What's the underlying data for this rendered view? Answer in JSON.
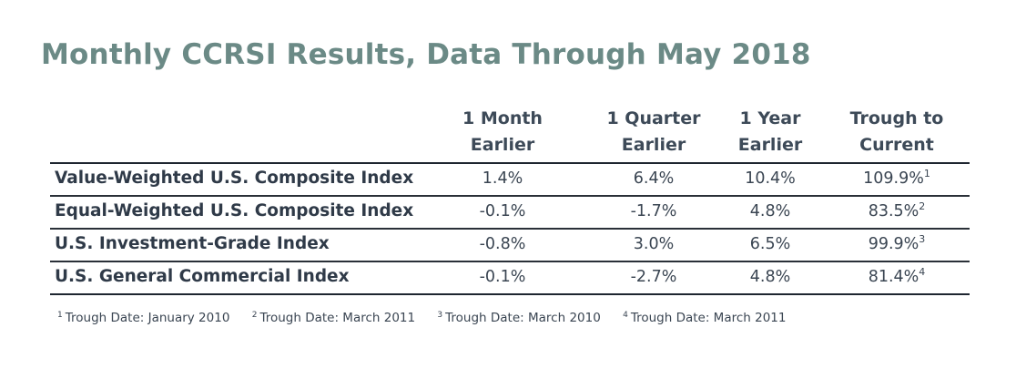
{
  "title": "Monthly CCRSI Results, Data Through May 2018",
  "columns": [
    {
      "line1": "1 Month",
      "line2": "Earlier"
    },
    {
      "line1": "1 Quarter",
      "line2": "Earlier"
    },
    {
      "line1": "1 Year",
      "line2": "Earlier"
    },
    {
      "line1": "Trough to",
      "line2": "Current"
    }
  ],
  "rows": [
    {
      "label": "Value-Weighted U.S. Composite Index",
      "m1": "1.4%",
      "q1": "6.4%",
      "y1": "10.4%",
      "trough": "109.9%",
      "note": "1"
    },
    {
      "label": "Equal-Weighted U.S. Composite Index",
      "m1": "-0.1%",
      "q1": "-1.7%",
      "y1": "4.8%",
      "trough": "83.5%",
      "note": "2"
    },
    {
      "label": "U.S. Investment-Grade Index",
      "m1": "-0.8%",
      "q1": "3.0%",
      "y1": "6.5%",
      "trough": "99.9%",
      "note": "3"
    },
    {
      "label": "U.S. General Commercial Index",
      "m1": "-0.1%",
      "q1": "-2.7%",
      "y1": "4.8%",
      "trough": "81.4%",
      "note": "4"
    }
  ],
  "footnotes": [
    {
      "num": "1",
      "text": "Trough Date: January 2010"
    },
    {
      "num": "2",
      "text": "Trough Date: March 2011"
    },
    {
      "num": "3",
      "text": "Trough Date: March 2010"
    },
    {
      "num": "4",
      "text": "Trough Date: March 2011"
    }
  ]
}
